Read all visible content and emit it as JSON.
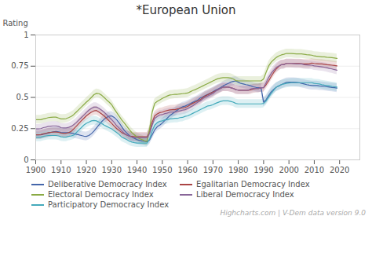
{
  "chart_data": {
    "type": "line",
    "title": "*European Union",
    "caption": "Highcharts.com | V-Dem data version 9.0",
    "ylabel": "Rating",
    "xlim": [
      1900,
      2028
    ],
    "ylim": [
      0,
      1
    ],
    "xticks": [
      1900,
      1910,
      1920,
      1930,
      1940,
      1950,
      1960,
      1970,
      1980,
      1990,
      2000,
      2010,
      2020
    ],
    "yticks": [
      0,
      0.25,
      0.5,
      0.75,
      1
    ],
    "grid": true,
    "legend": "bottom",
    "band_width": 0.035,
    "x": [
      1900,
      1901,
      1902,
      1903,
      1904,
      1905,
      1906,
      1907,
      1908,
      1909,
      1910,
      1911,
      1912,
      1913,
      1914,
      1915,
      1916,
      1917,
      1918,
      1919,
      1920,
      1921,
      1922,
      1923,
      1924,
      1925,
      1926,
      1927,
      1928,
      1929,
      1930,
      1931,
      1932,
      1933,
      1934,
      1935,
      1936,
      1937,
      1938,
      1939,
      1940,
      1941,
      1942,
      1943,
      1944,
      1945,
      1946,
      1947,
      1948,
      1949,
      1950,
      1951,
      1952,
      1953,
      1954,
      1955,
      1956,
      1957,
      1958,
      1959,
      1960,
      1961,
      1962,
      1963,
      1964,
      1965,
      1966,
      1967,
      1968,
      1969,
      1970,
      1971,
      1972,
      1973,
      1974,
      1975,
      1976,
      1977,
      1978,
      1979,
      1980,
      1981,
      1982,
      1983,
      1984,
      1985,
      1986,
      1987,
      1988,
      1989,
      1990,
      1991,
      1992,
      1993,
      1994,
      1995,
      1996,
      1997,
      1998,
      1999,
      2000,
      2001,
      2002,
      2003,
      2004,
      2005,
      2006,
      2007,
      2008,
      2009,
      2010,
      2011,
      2012,
      2013,
      2014,
      2015,
      2016,
      2017,
      2018,
      2019
    ],
    "series": [
      {
        "name": "Deliberative Democracy Index",
        "color": "#4466aa",
        "values": [
          0.2,
          0.2,
          0.2,
          0.205,
          0.21,
          0.215,
          0.22,
          0.225,
          0.228,
          0.225,
          0.22,
          0.218,
          0.218,
          0.218,
          0.215,
          0.21,
          0.205,
          0.2,
          0.195,
          0.19,
          0.188,
          0.195,
          0.21,
          0.23,
          0.255,
          0.28,
          0.305,
          0.325,
          0.34,
          0.35,
          0.352,
          0.34,
          0.32,
          0.295,
          0.265,
          0.235,
          0.215,
          0.195,
          0.182,
          0.172,
          0.162,
          0.155,
          0.15,
          0.148,
          0.145,
          0.16,
          0.2,
          0.24,
          0.265,
          0.278,
          0.295,
          0.315,
          0.335,
          0.355,
          0.37,
          0.385,
          0.4,
          0.415,
          0.425,
          0.43,
          0.44,
          0.45,
          0.46,
          0.47,
          0.48,
          0.495,
          0.505,
          0.515,
          0.525,
          0.535,
          0.545,
          0.558,
          0.568,
          0.578,
          0.592,
          0.602,
          0.612,
          0.622,
          0.628,
          0.632,
          0.622,
          0.612,
          0.608,
          0.602,
          0.598,
          0.592,
          0.585,
          0.58,
          0.578,
          0.578,
          0.462,
          0.482,
          0.515,
          0.545,
          0.565,
          0.582,
          0.592,
          0.602,
          0.612,
          0.62,
          0.622,
          0.622,
          0.622,
          0.62,
          0.618,
          0.612,
          0.608,
          0.602,
          0.598,
          0.595,
          0.595,
          0.595,
          0.592,
          0.59,
          0.588,
          0.585,
          0.582,
          0.58,
          0.578,
          0.575
        ]
      },
      {
        "name": "Egalitarian Democracy Index",
        "color": "#aa4444",
        "values": [
          0.2,
          0.2,
          0.202,
          0.208,
          0.212,
          0.218,
          0.22,
          0.222,
          0.222,
          0.22,
          0.215,
          0.212,
          0.212,
          0.218,
          0.228,
          0.248,
          0.268,
          0.29,
          0.312,
          0.332,
          0.352,
          0.368,
          0.382,
          0.392,
          0.395,
          0.382,
          0.368,
          0.352,
          0.332,
          0.312,
          0.292,
          0.27,
          0.25,
          0.235,
          0.218,
          0.208,
          0.198,
          0.19,
          0.188,
          0.185,
          0.185,
          0.185,
          0.185,
          0.185,
          0.185,
          0.228,
          0.302,
          0.352,
          0.368,
          0.378,
          0.382,
          0.39,
          0.395,
          0.4,
          0.402,
          0.402,
          0.408,
          0.412,
          0.415,
          0.42,
          0.428,
          0.44,
          0.452,
          0.462,
          0.472,
          0.482,
          0.498,
          0.512,
          0.522,
          0.532,
          0.542,
          0.552,
          0.562,
          0.572,
          0.582,
          0.582,
          0.582,
          0.578,
          0.572,
          0.562,
          0.558,
          0.558,
          0.558,
          0.558,
          0.558,
          0.56,
          0.568,
          0.572,
          0.572,
          0.578,
          0.578,
          0.602,
          0.632,
          0.668,
          0.7,
          0.728,
          0.748,
          0.762,
          0.765,
          0.772,
          0.772,
          0.772,
          0.772,
          0.772,
          0.772,
          0.77,
          0.768,
          0.768,
          0.768,
          0.775,
          0.772,
          0.77,
          0.768,
          0.768,
          0.765,
          0.762,
          0.76,
          0.758,
          0.755,
          0.752
        ]
      },
      {
        "name": "Electoral Democracy Index",
        "color": "#8aaa44",
        "values": [
          0.322,
          0.322,
          0.322,
          0.328,
          0.332,
          0.338,
          0.34,
          0.342,
          0.342,
          0.335,
          0.328,
          0.328,
          0.33,
          0.338,
          0.348,
          0.362,
          0.382,
          0.402,
          0.422,
          0.442,
          0.462,
          0.48,
          0.5,
          0.522,
          0.532,
          0.53,
          0.518,
          0.5,
          0.48,
          0.462,
          0.442,
          0.408,
          0.378,
          0.348,
          0.318,
          0.295,
          0.268,
          0.242,
          0.218,
          0.2,
          0.182,
          0.17,
          0.162,
          0.152,
          0.148,
          0.248,
          0.382,
          0.452,
          0.468,
          0.48,
          0.492,
          0.502,
          0.512,
          0.52,
          0.522,
          0.525,
          0.525,
          0.528,
          0.53,
          0.532,
          0.535,
          0.545,
          0.555,
          0.562,
          0.572,
          0.582,
          0.592,
          0.602,
          0.612,
          0.622,
          0.632,
          0.642,
          0.65,
          0.655,
          0.658,
          0.658,
          0.658,
          0.655,
          0.648,
          0.635,
          0.632,
          0.632,
          0.632,
          0.632,
          0.632,
          0.632,
          0.632,
          0.632,
          0.632,
          0.632,
          0.648,
          0.702,
          0.752,
          0.782,
          0.802,
          0.82,
          0.832,
          0.84,
          0.845,
          0.852,
          0.852,
          0.852,
          0.85,
          0.848,
          0.848,
          0.848,
          0.845,
          0.842,
          0.84,
          0.838,
          0.832,
          0.83,
          0.828,
          0.825,
          0.825,
          0.822,
          0.82,
          0.818,
          0.815,
          0.812
        ]
      },
      {
        "name": "Liberal Democracy Index",
        "color": "#886699",
        "values": [
          0.248,
          0.248,
          0.25,
          0.258,
          0.262,
          0.268,
          0.27,
          0.272,
          0.272,
          0.268,
          0.258,
          0.255,
          0.255,
          0.26,
          0.268,
          0.282,
          0.298,
          0.318,
          0.338,
          0.358,
          0.378,
          0.398,
          0.412,
          0.422,
          0.422,
          0.412,
          0.398,
          0.382,
          0.362,
          0.342,
          0.322,
          0.3,
          0.272,
          0.252,
          0.232,
          0.212,
          0.2,
          0.19,
          0.182,
          0.178,
          0.178,
          0.178,
          0.178,
          0.178,
          0.178,
          0.212,
          0.278,
          0.332,
          0.348,
          0.36,
          0.362,
          0.37,
          0.375,
          0.382,
          0.382,
          0.382,
          0.39,
          0.392,
          0.398,
          0.402,
          0.41,
          0.422,
          0.432,
          0.448,
          0.462,
          0.472,
          0.49,
          0.502,
          0.512,
          0.522,
          0.532,
          0.548,
          0.562,
          0.572,
          0.582,
          0.582,
          0.582,
          0.578,
          0.572,
          0.562,
          0.558,
          0.558,
          0.558,
          0.558,
          0.558,
          0.568,
          0.572,
          0.572,
          0.572,
          0.578,
          0.578,
          0.618,
          0.66,
          0.692,
          0.718,
          0.74,
          0.752,
          0.762,
          0.762,
          0.772,
          0.772,
          0.772,
          0.77,
          0.768,
          0.768,
          0.768,
          0.762,
          0.76,
          0.758,
          0.758,
          0.752,
          0.75,
          0.748,
          0.745,
          0.742,
          0.738,
          0.732,
          0.728,
          0.722,
          0.718
        ]
      },
      {
        "name": "Participatory Democracy Index",
        "color": "#44aabb",
        "values": [
          0.182,
          0.182,
          0.182,
          0.188,
          0.192,
          0.195,
          0.195,
          0.195,
          0.195,
          0.192,
          0.185,
          0.182,
          0.182,
          0.188,
          0.192,
          0.198,
          0.218,
          0.238,
          0.258,
          0.278,
          0.292,
          0.302,
          0.312,
          0.315,
          0.312,
          0.302,
          0.292,
          0.278,
          0.268,
          0.258,
          0.248,
          0.232,
          0.218,
          0.202,
          0.182,
          0.172,
          0.162,
          0.15,
          0.142,
          0.138,
          0.135,
          0.135,
          0.135,
          0.135,
          0.135,
          0.168,
          0.232,
          0.278,
          0.298,
          0.308,
          0.312,
          0.32,
          0.322,
          0.328,
          0.33,
          0.332,
          0.332,
          0.338,
          0.34,
          0.348,
          0.352,
          0.362,
          0.372,
          0.382,
          0.392,
          0.402,
          0.412,
          0.422,
          0.432,
          0.435,
          0.442,
          0.452,
          0.46,
          0.468,
          0.472,
          0.472,
          0.472,
          0.468,
          0.462,
          0.452,
          0.448,
          0.448,
          0.448,
          0.448,
          0.448,
          0.448,
          0.448,
          0.448,
          0.448,
          0.448,
          0.452,
          0.472,
          0.502,
          0.532,
          0.558,
          0.582,
          0.592,
          0.602,
          0.608,
          0.612,
          0.615,
          0.618,
          0.618,
          0.618,
          0.618,
          0.618,
          0.618,
          0.618,
          0.618,
          0.618,
          0.612,
          0.61,
          0.608,
          0.602,
          0.598,
          0.595,
          0.592,
          0.588,
          0.585,
          0.582
        ]
      }
    ]
  }
}
